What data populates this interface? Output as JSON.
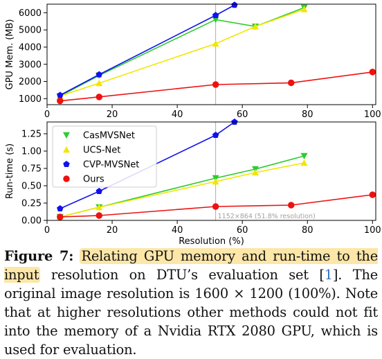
{
  "chart_data": [
    {
      "type": "line",
      "ylabel": "GPU Mem. (MB)",
      "xlabel": "",
      "xlim": [
        0,
        101
      ],
      "ylim": [
        650,
        6500
      ],
      "xticks": [
        0,
        20,
        40,
        60,
        80,
        100
      ],
      "yticks": [
        1000,
        2000,
        3000,
        4000,
        5000,
        6000
      ],
      "grid": false,
      "vline": 51.8,
      "series": [
        {
          "name": "CasMVSNet",
          "color": "#2ecc2e",
          "marker": "triangle-down",
          "x": [
            4,
            16,
            51.8,
            64,
            79
          ],
          "y": [
            1150,
            2350,
            5600,
            5200,
            6300
          ]
        },
        {
          "name": "UCS-Net",
          "color": "#f2e600",
          "marker": "triangle-up",
          "x": [
            4,
            16,
            51.8,
            64,
            79
          ],
          "y": [
            1150,
            1900,
            4200,
            5200,
            6200
          ]
        },
        {
          "name": "CVP-MVSNet",
          "color": "#1111ee",
          "marker": "pentagon",
          "x": [
            4,
            16,
            51.8,
            57.6
          ],
          "y": [
            1200,
            2400,
            5850,
            6450
          ]
        },
        {
          "name": "Ours",
          "color": "#ee1111",
          "marker": "circle",
          "x": [
            4,
            16,
            51.8,
            75,
            100
          ],
          "y": [
            870,
            1100,
            1820,
            1920,
            2550
          ]
        }
      ]
    },
    {
      "type": "line",
      "ylabel": "Run-time (s)",
      "xlabel": "Resolution (%)",
      "xlim": [
        0,
        101
      ],
      "ylim": [
        0,
        1.42
      ],
      "xticks": [
        0,
        20,
        40,
        60,
        80,
        100
      ],
      "yticks": [
        "0.00",
        "0.25",
        "0.50",
        "0.75",
        "1.00",
        "1.25"
      ],
      "grid": false,
      "vline": 51.8,
      "vline_label": "1152×864 (51.8% resolution)",
      "legend": "top-left",
      "series": [
        {
          "name": "CasMVSNet",
          "color": "#2ecc2e",
          "marker": "triangle-down",
          "x": [
            4,
            16,
            51.8,
            64,
            79
          ],
          "y": [
            0.05,
            0.19,
            0.61,
            0.74,
            0.93
          ]
        },
        {
          "name": "UCS-Net",
          "color": "#f2e600",
          "marker": "triangle-up",
          "x": [
            4,
            16,
            51.8,
            64,
            79
          ],
          "y": [
            0.05,
            0.19,
            0.56,
            0.69,
            0.83
          ]
        },
        {
          "name": "CVP-MVSNet",
          "color": "#1111ee",
          "marker": "pentagon",
          "x": [
            4,
            16,
            51.8,
            57.6
          ],
          "y": [
            0.17,
            0.42,
            1.23,
            1.42
          ]
        },
        {
          "name": "Ours",
          "color": "#ee1111",
          "marker": "circle",
          "x": [
            4,
            16,
            51.8,
            75,
            100
          ],
          "y": [
            0.05,
            0.07,
            0.2,
            0.22,
            0.37
          ]
        }
      ]
    }
  ],
  "caption": {
    "label": "Figure 7:",
    "highlight": "Relating GPU memory and run-time to the input",
    "text1": "resolution on DTU’s evaluation set [",
    "cite": "1",
    "text2": "]. The original image resolution is 1600 × 1200 (100%). Note that at higher resolutions other methods could not fit into the memory of a Nvidia RTX 2080 GPU, which is used for evaluation."
  }
}
